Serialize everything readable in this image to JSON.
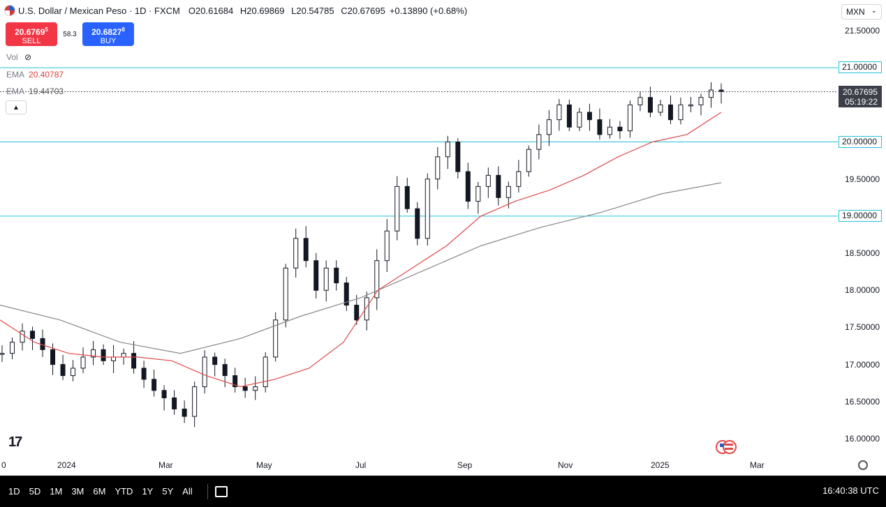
{
  "header": {
    "symbol": "U.S. Dollar / Mexican Peso · 1D · FXCM",
    "open_label": "O",
    "open": "20.61684",
    "high_label": "H",
    "high": "20.69869",
    "low_label": "L",
    "low": "20.54785",
    "close_label": "C",
    "close": "20.67695",
    "change": "+0.13890 (+0.68%)"
  },
  "trade": {
    "sell_price": "20.676",
    "sell_sup": "9",
    "sell_sup2": "5",
    "sell_label": "SELL",
    "spread": "58.3",
    "buy_price": "20.682",
    "buy_sup": "7",
    "buy_sup2": "8",
    "buy_label": "BUY"
  },
  "indicators": {
    "vol_label": "Vol",
    "ema1_label": "EMA",
    "ema1_value": "20.40787",
    "ema2_label": "EMA",
    "ema2_value": "19.44703"
  },
  "currency": {
    "selected": "MXN",
    "chevron": "⌄"
  },
  "price_axis": [
    "21.50000",
    "21.00000",
    "20.00000",
    "19.50000",
    "19.00000",
    "18.50000",
    "18.00000",
    "17.50000",
    "17.00000",
    "16.50000",
    "16.00000"
  ],
  "level_tags": [
    "21.00000",
    "20.00000",
    "19.00000"
  ],
  "current_price": {
    "price": "20.67695",
    "countdown": "05:19:22"
  },
  "time_axis": [
    "0",
    "2024",
    "Mar",
    "May",
    "Jul",
    "Sep",
    "Nov",
    "2025",
    "Mar"
  ],
  "ranges": [
    "1D",
    "5D",
    "1M",
    "3M",
    "6M",
    "YTD",
    "1Y",
    "5Y",
    "All"
  ],
  "clock": "16:40:38 UTC",
  "logo": "17",
  "colors": {
    "ema_fast": "#e04848",
    "ema_slow": "#888888",
    "levels": "#20c0d8",
    "candles": "#131722"
  },
  "chart_data": {
    "type": "candlestick",
    "ylim": [
      15.9,
      21.65
    ],
    "horizontal_levels": [
      21.0,
      20.0,
      19.0
    ],
    "series": [
      {
        "name": "USD/MXN",
        "values": [
          17.15,
          17.3,
          17.45,
          17.35,
          17.2,
          17.0,
          16.85,
          16.95,
          17.1,
          17.2,
          17.05,
          17.1,
          17.15,
          16.95,
          16.8,
          16.65,
          16.55,
          16.4,
          16.3,
          16.7,
          17.1,
          17.0,
          16.85,
          16.7,
          16.65,
          16.7,
          17.1,
          17.6,
          18.3,
          18.7,
          18.4,
          18.0,
          18.3,
          18.1,
          17.8,
          17.6,
          17.9,
          18.4,
          18.8,
          19.4,
          19.1,
          18.7,
          19.5,
          19.8,
          20.0,
          19.6,
          19.2,
          19.4,
          19.55,
          19.25,
          19.4,
          19.6,
          19.9,
          20.1,
          20.3,
          20.5,
          20.2,
          20.4,
          20.3,
          20.1,
          20.2,
          20.15,
          20.5,
          20.6,
          20.4,
          20.5,
          20.3,
          20.5,
          20.5,
          20.6,
          20.7,
          20.68
        ]
      },
      {
        "name": "EMA",
        "values": [
          17.6,
          17.3,
          17.15,
          17.1,
          17.1,
          17.05,
          16.85,
          16.7,
          16.8,
          16.95,
          17.3,
          18.0,
          18.3,
          18.6,
          19.0,
          19.2,
          19.35,
          19.55,
          19.8,
          20.0,
          20.1,
          20.4
        ]
      },
      {
        "name": "EMA",
        "values": [
          17.8,
          17.6,
          17.3,
          17.15,
          17.35,
          17.65,
          17.9,
          18.25,
          18.6,
          18.85,
          19.05,
          19.3,
          19.45
        ]
      }
    ]
  }
}
